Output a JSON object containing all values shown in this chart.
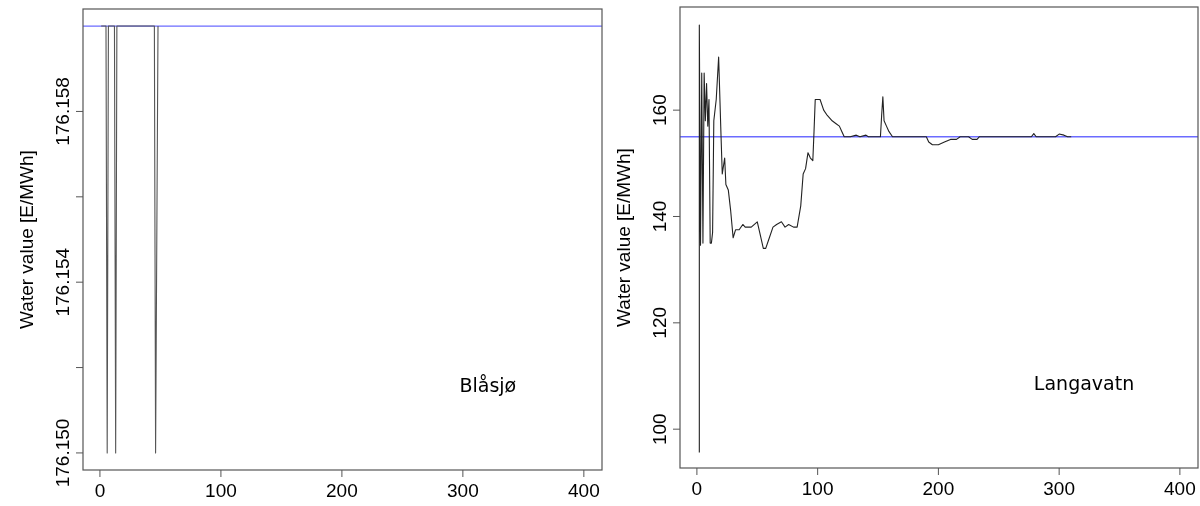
{
  "chart_data": [
    {
      "type": "line",
      "ylabel": "Water value [E/MWh]",
      "annotations": [
        "Blåsjø"
      ],
      "xlim": [
        -14,
        415
      ],
      "xticks": [
        0,
        100,
        200,
        300,
        400
      ],
      "ylim": [
        176.1496,
        176.1604
      ],
      "yticks": [
        {
          "value": 176.15,
          "label": "176.150"
        },
        {
          "value": 176.152,
          "label": null
        },
        {
          "value": 176.154,
          "label": "176.154"
        },
        {
          "value": 176.156,
          "label": null
        },
        {
          "value": 176.158,
          "label": "176.158"
        }
      ],
      "ref_lines": [
        {
          "axis": "y",
          "value": 176.16,
          "color": "#6b6bff"
        }
      ],
      "series": [
        {
          "color": "#555555",
          "x": [
            1,
            5,
            6,
            6.5,
            7,
            12,
            13,
            13.5,
            14,
            45,
            46,
            46.5,
            47,
            47.5,
            48
          ],
          "values": [
            176.16,
            176.16,
            176.15,
            176.155,
            176.16,
            176.16,
            176.15,
            176.155,
            176.16,
            176.16,
            176.15,
            176.1525,
            176.155,
            176.1575,
            176.16
          ]
        }
      ]
    },
    {
      "type": "line",
      "ylabel": "Water value [E/MWh]",
      "annotations": [
        "Langavatn"
      ],
      "xlim": [
        -14,
        415
      ],
      "xticks": [
        0,
        100,
        200,
        300,
        400
      ],
      "ylim": [
        92.7,
        179.4
      ],
      "yticks": [
        100,
        120,
        140,
        160
      ],
      "ref_lines": [
        {
          "axis": "y",
          "value": 155,
          "color": "#6b6bff"
        }
      ],
      "series": [
        {
          "color": "#222222",
          "x": [
            2,
            2,
            3,
            4,
            5,
            6,
            7,
            8,
            9,
            10,
            11,
            12,
            13,
            14,
            16,
            18,
            20,
            21,
            23,
            24,
            26,
            28,
            30,
            32,
            35,
            38,
            40,
            45,
            50,
            52,
            55,
            57,
            60,
            63,
            66,
            70,
            73,
            76,
            80,
            83,
            86,
            88,
            90,
            92,
            94,
            96,
            97,
            98,
            100,
            102,
            105,
            108,
            112,
            115,
            118,
            120,
            122,
            127,
            132,
            135,
            140,
            142,
            152,
            153,
            154,
            155,
            157,
            159,
            162,
            190,
            192,
            195,
            200,
            205,
            210,
            215,
            218,
            225,
            228,
            232,
            234,
            277,
            279,
            281,
            297,
            300,
            304,
            307,
            310
          ],
          "values": [
            95.6,
            176,
            134.6,
            167,
            135,
            167,
            158,
            165,
            157,
            162,
            135,
            135,
            137,
            158,
            162,
            170,
            155,
            148,
            151,
            146,
            145,
            141,
            136,
            137.5,
            137.5,
            138.5,
            138,
            138,
            139,
            137,
            134,
            134,
            136,
            138,
            138.5,
            139,
            138,
            138.5,
            138,
            138,
            142,
            148,
            149,
            152,
            151,
            150.5,
            156,
            162,
            162,
            162,
            160,
            159,
            158,
            157.5,
            157,
            156,
            155,
            155,
            155.3,
            155,
            155.3,
            155,
            155,
            159,
            162.5,
            158,
            157,
            156,
            155,
            155,
            154,
            153.5,
            153.5,
            154,
            154.5,
            154.5,
            155,
            155,
            154.5,
            154.5,
            155,
            155,
            155.6,
            155,
            155,
            155.5,
            155.3,
            155,
            155
          ]
        }
      ]
    }
  ]
}
